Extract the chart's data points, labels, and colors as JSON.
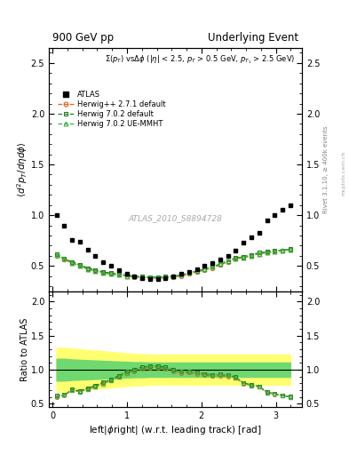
{
  "title_left": "900 GeV pp",
  "title_right": "Underlying Event",
  "ylabel_main": "$\\langle d^2 p_T / d\\eta d\\phi \\rangle$",
  "ylabel_ratio": "Ratio to ATLAS",
  "xlabel": "left|$\\phi$right| (w.r.t. leading track) [rad]",
  "annotation": "$\\Sigma(p_T)$ vs$\\Delta\\phi$ ($|\\eta|$ < 2.5, $p_T$ > 0.5 GeV, $p_{T_1}$ > 2.5 GeV)",
  "watermark": "ATLAS_2010_S8894728",
  "rivet_label": "Rivet 3.1.10, ≥ 400k events",
  "mcplots_label": "mcplots.cern.ch",
  "ylim_main": [
    0.25,
    2.65
  ],
  "ylim_ratio": [
    0.45,
    2.15
  ],
  "yticks_main": [
    0.5,
    1.0,
    1.5,
    2.0,
    2.5
  ],
  "yticks_ratio": [
    0.5,
    1.0,
    1.5,
    2.0
  ],
  "xlim": [
    -0.05,
    3.35
  ],
  "xticks": [
    0,
    1,
    2,
    3
  ],
  "atlas_x": [
    0.0524,
    0.157,
    0.262,
    0.367,
    0.471,
    0.576,
    0.681,
    0.785,
    0.89,
    0.995,
    1.1,
    1.204,
    1.309,
    1.414,
    1.518,
    1.623,
    1.728,
    1.833,
    1.937,
    2.042,
    2.147,
    2.251,
    2.356,
    2.461,
    2.565,
    2.67,
    2.775,
    2.88,
    2.984,
    3.089,
    3.194
  ],
  "atlas_y": [
    1.0,
    0.9,
    0.76,
    0.74,
    0.66,
    0.6,
    0.54,
    0.5,
    0.46,
    0.42,
    0.4,
    0.38,
    0.37,
    0.37,
    0.38,
    0.4,
    0.42,
    0.44,
    0.47,
    0.5,
    0.53,
    0.56,
    0.6,
    0.65,
    0.73,
    0.78,
    0.83,
    0.95,
    1.0,
    1.05,
    1.1
  ],
  "hw271_x": [
    0.0524,
    0.157,
    0.262,
    0.367,
    0.471,
    0.576,
    0.681,
    0.785,
    0.89,
    0.995,
    1.1,
    1.204,
    1.309,
    1.414,
    1.518,
    1.623,
    1.728,
    1.833,
    1.937,
    2.042,
    2.147,
    2.251,
    2.356,
    2.461,
    2.565,
    2.67,
    2.775,
    2.88,
    2.984,
    3.089,
    3.194
  ],
  "hw271_y": [
    0.6,
    0.56,
    0.53,
    0.5,
    0.47,
    0.45,
    0.43,
    0.42,
    0.41,
    0.4,
    0.39,
    0.385,
    0.38,
    0.38,
    0.385,
    0.39,
    0.4,
    0.42,
    0.44,
    0.46,
    0.48,
    0.51,
    0.54,
    0.57,
    0.58,
    0.6,
    0.62,
    0.63,
    0.64,
    0.65,
    0.66
  ],
  "hw702d_x": [
    0.0524,
    0.157,
    0.262,
    0.367,
    0.471,
    0.576,
    0.681,
    0.785,
    0.89,
    0.995,
    1.1,
    1.204,
    1.309,
    1.414,
    1.518,
    1.623,
    1.728,
    1.833,
    1.937,
    2.042,
    2.147,
    2.251,
    2.356,
    2.461,
    2.565,
    2.67,
    2.775,
    2.88,
    2.984,
    3.089,
    3.194
  ],
  "hw702d_y": [
    0.62,
    0.57,
    0.54,
    0.51,
    0.48,
    0.46,
    0.44,
    0.43,
    0.42,
    0.41,
    0.4,
    0.395,
    0.39,
    0.39,
    0.395,
    0.4,
    0.41,
    0.43,
    0.45,
    0.47,
    0.49,
    0.52,
    0.55,
    0.58,
    0.59,
    0.61,
    0.63,
    0.64,
    0.65,
    0.655,
    0.665
  ],
  "hw702ue_x": [
    0.0524,
    0.157,
    0.262,
    0.367,
    0.471,
    0.576,
    0.681,
    0.785,
    0.89,
    0.995,
    1.1,
    1.204,
    1.309,
    1.414,
    1.518,
    1.623,
    1.728,
    1.833,
    1.937,
    2.042,
    2.147,
    2.251,
    2.356,
    2.461,
    2.565,
    2.67,
    2.775,
    2.88,
    2.984,
    3.089,
    3.194
  ],
  "hw702ue_y": [
    0.61,
    0.57,
    0.53,
    0.5,
    0.47,
    0.45,
    0.43,
    0.42,
    0.41,
    0.4,
    0.395,
    0.39,
    0.385,
    0.385,
    0.39,
    0.395,
    0.41,
    0.43,
    0.45,
    0.47,
    0.49,
    0.52,
    0.55,
    0.575,
    0.585,
    0.6,
    0.62,
    0.635,
    0.645,
    0.655,
    0.66
  ],
  "ratio_hw271_y": [
    0.6,
    0.62,
    0.7,
    0.68,
    0.71,
    0.75,
    0.8,
    0.84,
    0.89,
    0.95,
    0.975,
    1.01,
    1.03,
    1.03,
    1.01,
    0.975,
    0.952,
    0.955,
    0.936,
    0.92,
    0.906,
    0.911,
    0.9,
    0.877,
    0.795,
    0.769,
    0.747,
    0.663,
    0.64,
    0.619,
    0.6
  ],
  "ratio_hw702d_y": [
    0.62,
    0.63,
    0.71,
    0.69,
    0.73,
    0.77,
    0.815,
    0.86,
    0.913,
    0.976,
    1.0,
    1.039,
    1.054,
    1.054,
    1.039,
    1.0,
    0.976,
    0.977,
    0.957,
    0.94,
    0.925,
    0.929,
    0.917,
    0.892,
    0.808,
    0.782,
    0.759,
    0.674,
    0.65,
    0.624,
    0.605
  ],
  "ratio_hw702ue_y": [
    0.61,
    0.633,
    0.697,
    0.676,
    0.712,
    0.75,
    0.796,
    0.84,
    0.891,
    0.952,
    0.988,
    1.026,
    1.041,
    1.041,
    1.026,
    0.988,
    0.976,
    0.977,
    0.957,
    0.94,
    0.925,
    0.929,
    0.917,
    0.885,
    0.801,
    0.769,
    0.747,
    0.668,
    0.645,
    0.624,
    0.6
  ],
  "band_yellow_lo": [
    0.68,
    0.68,
    0.69,
    0.7,
    0.71,
    0.72,
    0.73,
    0.74,
    0.75,
    0.76,
    0.77,
    0.77,
    0.78,
    0.78,
    0.78,
    0.78,
    0.78,
    0.78,
    0.78,
    0.78,
    0.78,
    0.78,
    0.78,
    0.78,
    0.78,
    0.78,
    0.78,
    0.78,
    0.78,
    0.78,
    0.78
  ],
  "band_yellow_hi": [
    1.32,
    1.32,
    1.31,
    1.3,
    1.29,
    1.28,
    1.27,
    1.26,
    1.25,
    1.24,
    1.23,
    1.23,
    1.22,
    1.22,
    1.22,
    1.22,
    1.22,
    1.22,
    1.22,
    1.22,
    1.22,
    1.22,
    1.22,
    1.22,
    1.22,
    1.22,
    1.22,
    1.22,
    1.22,
    1.22,
    1.22
  ],
  "band_green_lo": [
    0.84,
    0.84,
    0.85,
    0.855,
    0.86,
    0.865,
    0.87,
    0.875,
    0.88,
    0.885,
    0.89,
    0.89,
    0.895,
    0.895,
    0.895,
    0.895,
    0.895,
    0.895,
    0.895,
    0.895,
    0.895,
    0.895,
    0.895,
    0.895,
    0.895,
    0.895,
    0.895,
    0.895,
    0.895,
    0.895,
    0.895
  ],
  "band_green_hi": [
    1.16,
    1.16,
    1.15,
    1.145,
    1.14,
    1.135,
    1.13,
    1.125,
    1.12,
    1.115,
    1.11,
    1.11,
    1.105,
    1.105,
    1.105,
    1.105,
    1.105,
    1.105,
    1.105,
    1.105,
    1.105,
    1.105,
    1.105,
    1.105,
    1.105,
    1.105,
    1.105,
    1.105,
    1.105,
    1.105,
    1.105
  ],
  "color_atlas": "black",
  "color_hw271": "#e06010",
  "color_hw702d": "#208020",
  "color_hw702ue": "#40b040",
  "color_band_yellow": "#ffff70",
  "color_band_green": "#70d870",
  "legend_labels": [
    "ATLAS",
    "Herwig++ 2.7.1 default",
    "Herwig 7.0.2 default",
    "Herwig 7.0.2 UE-MMHT"
  ]
}
